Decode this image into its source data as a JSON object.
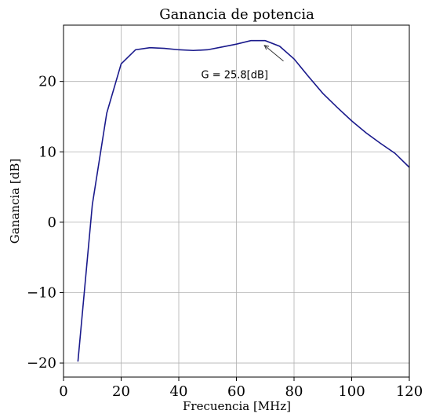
{
  "chart_data": {
    "type": "line",
    "title": "Ganancia de potencia",
    "xlabel": "Frecuencia [MHz]",
    "ylabel": "Ganancia [dB]",
    "xlim": [
      0,
      120
    ],
    "ylim": [
      -22,
      28
    ],
    "xticks": [
      0,
      20,
      40,
      60,
      80,
      100,
      120
    ],
    "yticks": [
      -20,
      -10,
      0,
      10,
      20
    ],
    "xtick_labels": [
      "0",
      "20",
      "40",
      "60",
      "80",
      "100",
      "120"
    ],
    "ytick_labels": [
      "−20",
      "−10",
      "0",
      "10",
      "20"
    ],
    "grid": true,
    "series": [
      {
        "color": "#1a1a8c",
        "x": [
          5,
          10,
          15,
          20,
          25,
          30,
          35,
          40,
          45,
          50,
          55,
          60,
          65,
          70,
          75,
          80,
          85,
          90,
          95,
          100,
          105,
          110,
          115,
          120
        ],
        "y": [
          -19.8,
          2.5,
          15.5,
          22.5,
          24.5,
          24.8,
          24.7,
          24.5,
          24.4,
          24.5,
          24.9,
          25.3,
          25.8,
          25.8,
          25.0,
          23.2,
          20.7,
          18.3,
          16.3,
          14.4,
          12.7,
          11.2,
          9.8,
          7.8
        ]
      }
    ],
    "annotation": {
      "text": "G = 25.8[dB]",
      "x": 70,
      "y": 25.8,
      "text_x": 60,
      "text_y": 21.0
    }
  }
}
